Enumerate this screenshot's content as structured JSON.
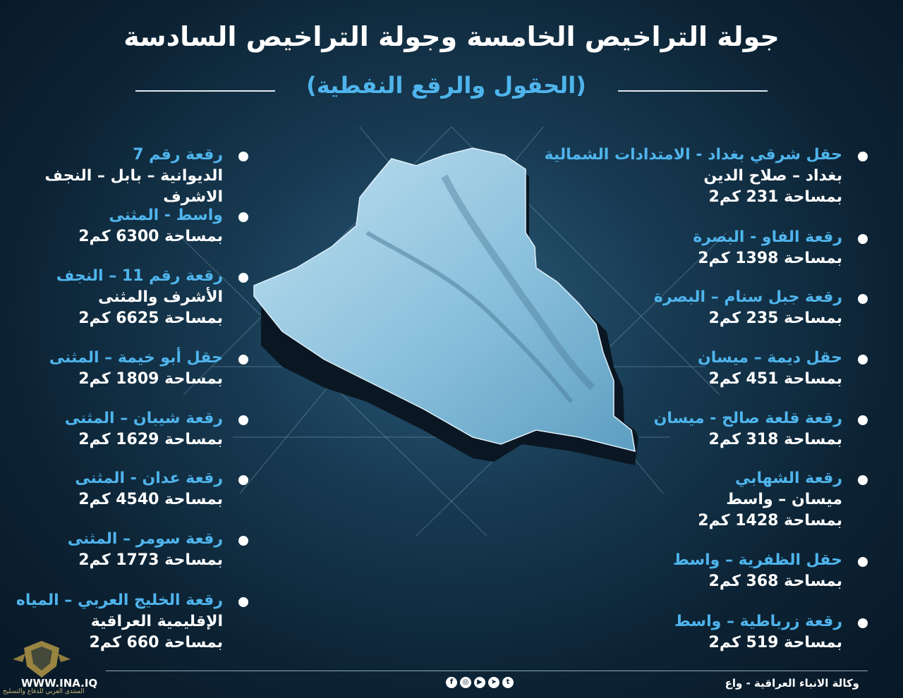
{
  "header": {
    "title": "جولة التراخيص الخامسة وجولة التراخيص السادسة",
    "subtitle": "(الحقول والرقع النفطية)"
  },
  "colors": {
    "accent": "#4fb4ec",
    "background": "#0c2233",
    "text": "#ffffff"
  },
  "right_column": [
    {
      "name": "حقل شرقي بغداد - الامتدادات الشمالية",
      "lines": [
        "بغداد – صلاح الدين",
        "بمساحة 231 كم2"
      ]
    },
    {
      "name": "رقعة الفاو - البصرة",
      "lines": [
        "بمساحة 1398 كم2"
      ]
    },
    {
      "name": "رقعة جبل سنام – البصرة",
      "lines": [
        "بمساحة 235 كم2"
      ]
    },
    {
      "name": "حقل ديمة – ميسان",
      "lines": [
        "بمساحة 451 كم2"
      ]
    },
    {
      "name": "رقعة قلعة صالح - ميسان",
      "lines": [
        "بمساحة 318 كم2"
      ]
    },
    {
      "name": "رقعة الشهابي",
      "lines": [
        "ميسان – واسط",
        "بمساحة 1428 كم2"
      ]
    },
    {
      "name": "حقل الظفرية – واسط",
      "lines": [
        "بمساحة 368 كم2"
      ]
    },
    {
      "name": "رقعة زرباطية – واسط",
      "lines": [
        "بمساحة 519 كم2"
      ]
    }
  ],
  "left_column": [
    {
      "name": "رقعة رقم 7",
      "lines": [
        "الديوانية – بابل – النجف",
        "الاشرف"
      ]
    },
    {
      "name": "واسط - المثنى",
      "lines": [
        "بمساحة 6300 كم2"
      ]
    },
    {
      "name": "رقعة رقم 11 – النجف",
      "lines": [
        "الأشرف والمثنى",
        "بمساحة 6625 كم2"
      ]
    },
    {
      "name": "حقل أبو خيمة – المثنى",
      "lines": [
        "بمساحة 1809 كم2"
      ]
    },
    {
      "name": "رقعة شيبان – المثنى",
      "lines": [
        "بمساحة 1629 كم2"
      ]
    },
    {
      "name": "رقعة عدان - المثنى",
      "lines": [
        "بمساحة 4540 كم2"
      ]
    },
    {
      "name": "رقعة سومر – المثنى",
      "lines": [
        "بمساحة 1773 كم2"
      ]
    },
    {
      "name": "رقعة الخليج العربي – المياه",
      "lines": [
        "الإقليمية العراقية",
        "بمساحة 660 كم2"
      ]
    }
  ],
  "footer": {
    "agency": "وكالة الانباء العراقية - واع",
    "site": "WWW.INA.IQ",
    "watermark": "المنتدى العربي للدفاع والتسليح",
    "social_icons": [
      "facebook-icon",
      "instagram-icon",
      "youtube-icon",
      "telegram-icon",
      "twitter-icon"
    ]
  }
}
